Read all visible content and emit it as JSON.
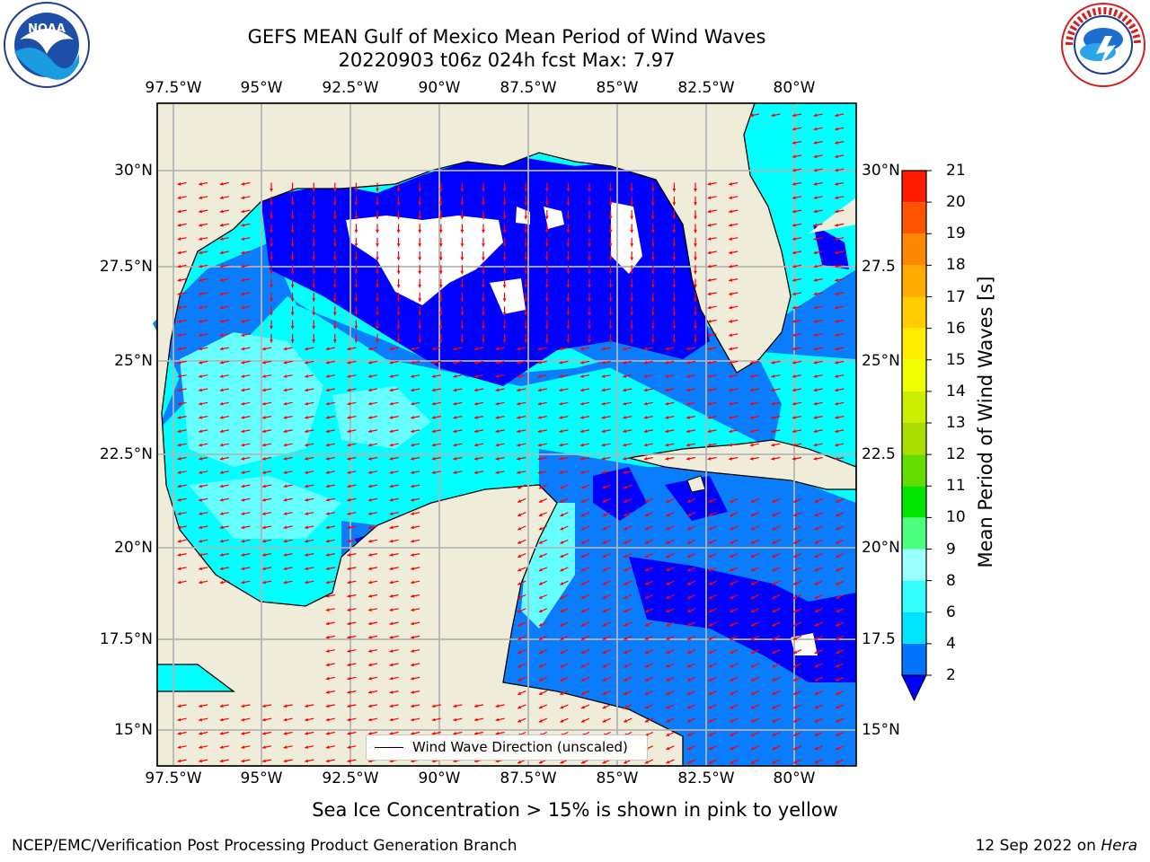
{
  "title": {
    "line1": "GEFS MEAN Gulf of Mexico Mean Period of Wind Waves",
    "line2": "20220903 t06z 024h fcst   Max: 7.97"
  },
  "logos": {
    "left": {
      "name": "noaa-logo",
      "text": "NOAA"
    },
    "right": {
      "name": "national-weather-service-logo",
      "text": "NATIONAL WEATHER SERVICE"
    }
  },
  "axes": {
    "lon_ticks": [
      "97.5°W",
      "95°W",
      "92.5°W",
      "90°W",
      "87.5°W",
      "85°W",
      "82.5°W",
      "80°W"
    ],
    "lat_ticks_left": [
      "30°N",
      "27.5°N",
      "25°N",
      "22.5°N",
      "20°N",
      "17.5°N",
      "15°N"
    ],
    "lat_ticks_right": [
      "30°N",
      "27.5",
      "25°N",
      "22.5",
      "20°N",
      "17.5",
      "15°N"
    ]
  },
  "colorbar": {
    "label": "Mean Period of Wind Waves [s]",
    "ticks": [
      "2",
      "4",
      "6",
      "8",
      "9",
      "10",
      "11",
      "12",
      "13",
      "14",
      "15",
      "16",
      "17",
      "18",
      "19",
      "20",
      "21"
    ],
    "colors": [
      "#0073ff",
      "#00e5ff",
      "#33ffff",
      "#99ffff",
      "#4dff80",
      "#00e600",
      "#66dd00",
      "#aadd00",
      "#ccee00",
      "#eeff00",
      "#ffee00",
      "#ffcc00",
      "#ffaa00",
      "#ff8800",
      "#ff5500",
      "#ff1a00"
    ],
    "extend_color": "#0000ff"
  },
  "map_colors": {
    "land": "#efedda",
    "deep_blue": "#0000ff",
    "blue": "#0a7dff",
    "cyan": "#00ffff",
    "light_cyan": "#66ffff",
    "arrow": "#ff0000"
  },
  "legend": {
    "label": "Wind Wave Direction (unscaled)"
  },
  "footer": {
    "note": "Sea Ice Concentration > 15% is shown in pink to yellow",
    "credit_left": "NCEP/EMC/Verification Post Processing Product Generation Branch",
    "credit_right_date": "12 Sep 2022 on ",
    "credit_right_host": "Hera"
  }
}
